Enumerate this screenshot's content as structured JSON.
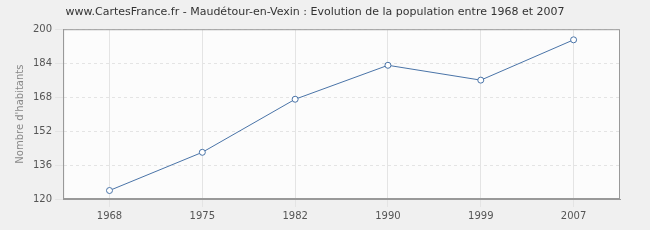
{
  "chart_data": {
    "type": "line",
    "title": "www.CartesFrance.fr - Maudétour-en-Vexin : Evolution de la population entre 1968 et 2007",
    "y_label": "Nombre d'habitants",
    "categories": [
      "1968",
      "1975",
      "1982",
      "1990",
      "1999",
      "2007"
    ],
    "values": [
      124,
      142,
      167,
      183,
      176,
      195
    ],
    "color": "#4a74a8",
    "marker": "circle",
    "ylim": [
      120,
      200
    ],
    "yticks": [
      120,
      136,
      152,
      168,
      184,
      200
    ],
    "grid": true
  }
}
